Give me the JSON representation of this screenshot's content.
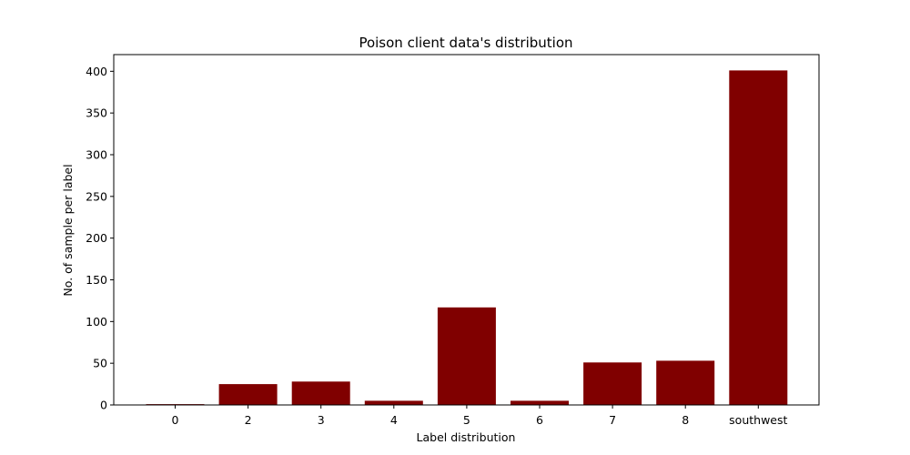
{
  "chart_data": {
    "type": "bar",
    "title": "Poison client data's distribution",
    "xlabel": "Label distribution",
    "ylabel": "No. of sample per label",
    "categories": [
      "0",
      "2",
      "3",
      "4",
      "5",
      "6",
      "7",
      "8",
      "southwest"
    ],
    "values": [
      1,
      25,
      28,
      5,
      117,
      5,
      51,
      53,
      401
    ],
    "ylim": [
      0,
      420
    ],
    "yticks": [
      0,
      50,
      100,
      150,
      200,
      250,
      300,
      350,
      400
    ],
    "bar_color": "#800000",
    "grid": false,
    "legend": false
  }
}
